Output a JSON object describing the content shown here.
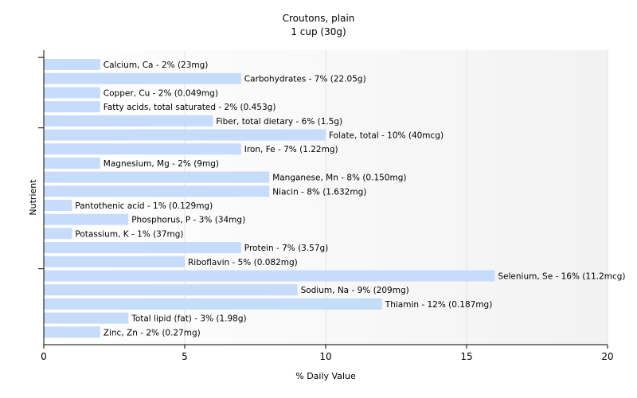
{
  "chart_data": {
    "type": "bar",
    "orientation": "horizontal",
    "title": "Croutons, plain",
    "subtitle": "1 cup (30g)",
    "xlabel": "% Daily Value",
    "ylabel": "Nutrient",
    "xlim": [
      0,
      20
    ],
    "x_ticks": [
      "0",
      "5",
      "10",
      "15",
      "20"
    ],
    "grid": "vertical gridlines",
    "categories": [
      "Calcium, Ca",
      "Carbohydrates",
      "Copper, Cu",
      "Fatty acids, total saturated",
      "Fiber, total dietary",
      "Folate, total",
      "Iron, Fe",
      "Magnesium, Mg",
      "Manganese, Mn",
      "Niacin",
      "Pantothenic acid",
      "Phosphorus, P",
      "Potassium, K",
      "Protein",
      "Riboflavin",
      "Selenium, Se",
      "Sodium, Na",
      "Thiamin",
      "Total lipid (fat)",
      "Zinc, Zn"
    ],
    "values": [
      2,
      7,
      2,
      2,
      6,
      10,
      7,
      2,
      8,
      8,
      1,
      3,
      1,
      7,
      5,
      16,
      9,
      12,
      3,
      2
    ],
    "labels": [
      "Calcium, Ca - 2% (23mg)",
      "Carbohydrates - 7% (22.05g)",
      "Copper, Cu - 2% (0.049mg)",
      "Fatty acids, total saturated - 2% (0.453g)",
      "Fiber, total dietary - 6% (1.5g)",
      "Folate, total - 10% (40mcg)",
      "Iron, Fe - 7% (1.22mg)",
      "Magnesium, Mg - 2% (9mg)",
      "Manganese, Mn - 8% (0.150mg)",
      "Niacin - 8% (1.632mg)",
      "Pantothenic acid - 1% (0.129mg)",
      "Phosphorus, P - 3% (34mg)",
      "Potassium, K - 1% (37mg)",
      "Protein - 7% (3.57g)",
      "Riboflavin - 5% (0.082mg)",
      "Selenium, Se - 16% (11.2mcg)",
      "Sodium, Na - 9% (209mg)",
      "Thiamin - 12% (0.187mg)",
      "Total lipid (fat) - 3% (1.98g)",
      "Zinc, Zn - 2% (0.27mg)"
    ],
    "colors": {
      "bar": "#c6dcfa",
      "grid": "#e3e3e3",
      "axis": "#000000",
      "text": "#000000"
    }
  }
}
